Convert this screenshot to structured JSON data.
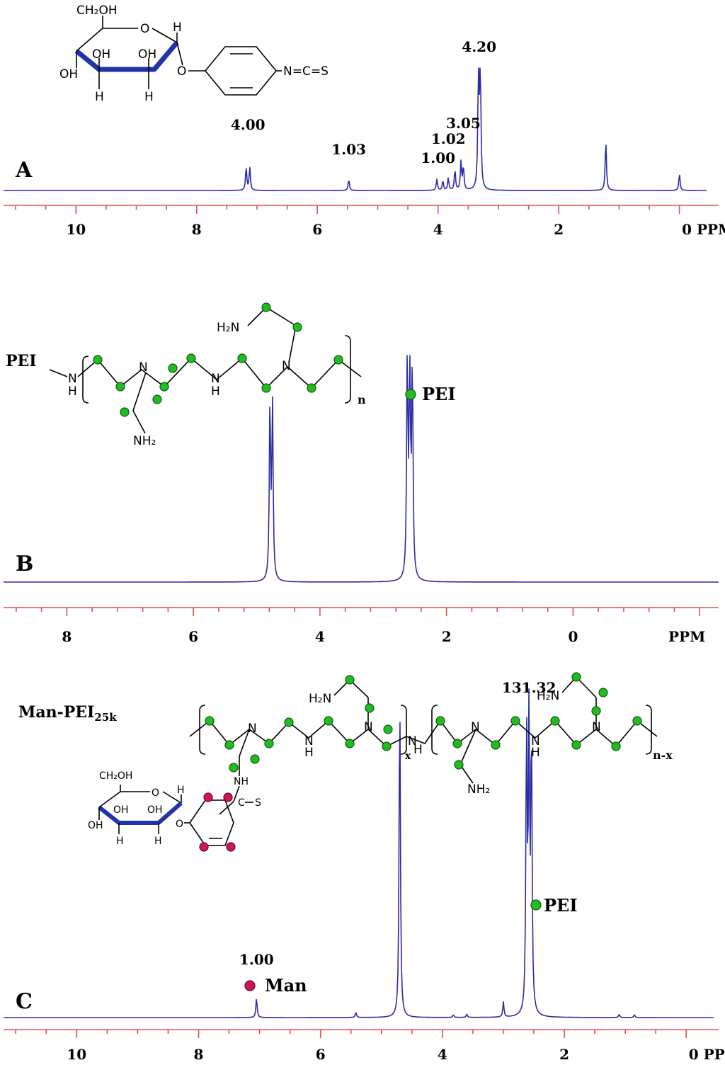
{
  "chart_data": [
    {
      "type": "line",
      "panel_label": "A",
      "xlabel": "PPM",
      "xlim": [
        11.2,
        -0.45
      ],
      "x_reversed": true,
      "xticks": [
        10,
        8,
        6,
        4,
        2,
        0
      ],
      "tick_labels": [
        "10",
        "8",
        "6",
        "4",
        "2",
        "0 PPM"
      ],
      "peaks": [
        {
          "ppm": 7.18,
          "height": 0.19
        },
        {
          "ppm": 7.12,
          "height": 0.19
        },
        {
          "ppm": 5.48,
          "height": 0.09
        },
        {
          "ppm": 4.02,
          "height": 0.09
        },
        {
          "ppm": 3.92,
          "height": 0.08
        },
        {
          "ppm": 3.83,
          "height": 0.1
        },
        {
          "ppm": 3.72,
          "height": 0.17
        },
        {
          "ppm": 3.62,
          "height": 0.23
        },
        {
          "ppm": 3.58,
          "height": 0.19
        },
        {
          "ppm": 3.33,
          "height": 1.0
        },
        {
          "ppm": 3.3,
          "height": 1.0
        },
        {
          "ppm": 1.22,
          "height": 0.41
        },
        {
          "ppm": 0.0,
          "height": 0.14
        }
      ],
      "integrals": [
        {
          "ppm": 7.15,
          "text": "4.00"
        },
        {
          "ppm": 5.48,
          "text": "1.03"
        },
        {
          "ppm": 4.0,
          "text": "1.00"
        },
        {
          "ppm": 3.83,
          "text": "1.02"
        },
        {
          "ppm": 3.58,
          "text": "3.05"
        },
        {
          "ppm": 3.32,
          "text": "4.20"
        }
      ]
    },
    {
      "type": "line",
      "panel_label": "B",
      "xlabel": "PPM",
      "xlim": [
        9.0,
        -2.3
      ],
      "x_reversed": true,
      "xticks": [
        8,
        6,
        4,
        2,
        0
      ],
      "tick_labels": [
        "8",
        "6",
        "4",
        "2",
        "0"
      ],
      "axis_unit_label": "PPM",
      "peaks": [
        {
          "ppm": 4.79,
          "height": 0.77
        },
        {
          "ppm": 4.75,
          "height": 0.77
        },
        {
          "ppm": 2.62,
          "height": 0.97
        },
        {
          "ppm": 2.58,
          "height": 0.96
        },
        {
          "ppm": 2.54,
          "height": 0.94
        }
      ],
      "annotations": [
        {
          "ppm": 2.55,
          "text": "PEI",
          "marker": "green"
        }
      ]
    },
    {
      "type": "line",
      "panel_label": "C",
      "xlabel": "PPM",
      "xlim": [
        11.2,
        -0.45
      ],
      "x_reversed": true,
      "xticks": [
        10,
        8,
        6,
        4,
        2,
        0
      ],
      "tick_labels": [
        "10",
        "8",
        "6",
        "4",
        "2",
        "0 PPM"
      ],
      "peaks": [
        {
          "ppm": 7.05,
          "height": 0.058
        },
        {
          "ppm": 5.42,
          "height": 0.015
        },
        {
          "ppm": 4.7,
          "height": 1.0
        },
        {
          "ppm": 3.82,
          "height": 0.008
        },
        {
          "ppm": 3.6,
          "height": 0.01
        },
        {
          "ppm": 3.0,
          "height": 0.045
        },
        {
          "ppm": 2.62,
          "height": 0.86
        },
        {
          "ppm": 2.58,
          "height": 0.85
        },
        {
          "ppm": 2.54,
          "height": 0.84
        },
        {
          "ppm": 1.1,
          "height": 0.01
        },
        {
          "ppm": 0.85,
          "height": 0.008
        }
      ],
      "integrals": [
        {
          "ppm": 7.05,
          "text": "1.00"
        },
        {
          "ppm": 2.58,
          "text": "131.32"
        }
      ],
      "annotations": [
        {
          "ppm": 7.05,
          "text": "Man",
          "marker": "red"
        },
        {
          "ppm": 2.3,
          "text": "PEI",
          "marker": "green"
        }
      ]
    }
  ],
  "panels": {
    "a": {
      "letter": "A"
    },
    "b": {
      "letter": "B",
      "struct_name": "PEI",
      "legend": "PEI",
      "repeat": "n"
    },
    "c": {
      "letter": "C",
      "struct_name": "Man-PEI",
      "struct_sub": "25k",
      "legend_pei": "PEI",
      "legend_man": "Man",
      "repeat_x": "x",
      "repeat_nx": "n-x"
    }
  },
  "atoms": {
    "ch2oh": "CH₂OH",
    "o": "O",
    "h": "H",
    "oh": "OH",
    "ncs": "N=C=S",
    "n": "N",
    "nh2_left": "H₂N",
    "nh2": "NH₂",
    "nh": "NH",
    "c": "C",
    "s": "S"
  },
  "colors": {
    "spectrum": "#2b2ba8",
    "axis": "#e05050",
    "pei_marker": "#22bb22",
    "man_marker": "#d4145a",
    "ring_front": "#2233aa"
  }
}
